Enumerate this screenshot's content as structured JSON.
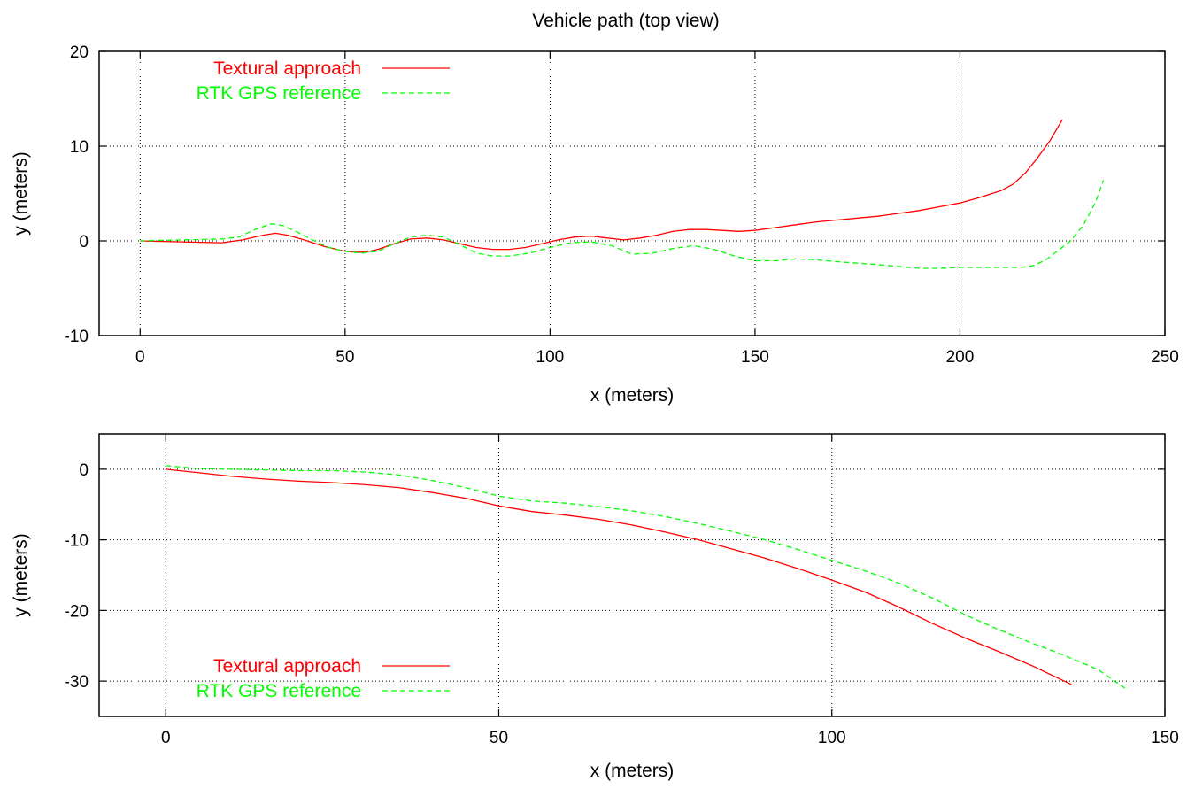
{
  "figure": {
    "title": "Vehicle path (top view)"
  },
  "chart_data": [
    {
      "type": "line",
      "title": "Vehicle path (top view)",
      "xlabel": "x (meters)",
      "ylabel": "y (meters)",
      "xlim": [
        -10,
        250
      ],
      "ylim": [
        -10,
        20
      ],
      "xticks": [
        0,
        50,
        100,
        150,
        200,
        250
      ],
      "yticks": [
        -10,
        0,
        10,
        20
      ],
      "xtick_labels": [
        "0",
        "50",
        "100",
        "150",
        "200",
        "250"
      ],
      "ytick_labels": [
        "-10",
        "0",
        "10",
        "20"
      ],
      "grid": true,
      "legend": "top-left",
      "series": [
        {
          "name": "Textural approach",
          "color": "#ff0000",
          "dash": "solid",
          "x": [
            0,
            10,
            20,
            25,
            30,
            33,
            36,
            40,
            45,
            50,
            53,
            55,
            58,
            62,
            66,
            70,
            74,
            78,
            82,
            86,
            90,
            94,
            98,
            102,
            106,
            110,
            114,
            118,
            122,
            126,
            130,
            134,
            138,
            142,
            146,
            150,
            155,
            160,
            165,
            170,
            175,
            180,
            185,
            190,
            195,
            200,
            205,
            210,
            213,
            216,
            219,
            222,
            225
          ],
          "y": [
            0,
            -0.1,
            -0.2,
            0.1,
            0.6,
            0.8,
            0.6,
            0.1,
            -0.6,
            -1.1,
            -1.2,
            -1.2,
            -0.9,
            -0.3,
            0.2,
            0.3,
            0.1,
            -0.3,
            -0.7,
            -0.9,
            -0.9,
            -0.7,
            -0.3,
            0.1,
            0.4,
            0.5,
            0.3,
            0.1,
            0.3,
            0.6,
            1.0,
            1.2,
            1.2,
            1.1,
            1.0,
            1.1,
            1.4,
            1.7,
            2.0,
            2.2,
            2.4,
            2.6,
            2.9,
            3.2,
            3.6,
            4.0,
            4.6,
            5.3,
            6.0,
            7.2,
            8.8,
            10.6,
            12.8
          ]
        },
        {
          "name": "RTK GPS reference",
          "color": "#00ff00",
          "dash": "dashed",
          "x": [
            0,
            10,
            20,
            24,
            28,
            32,
            35,
            38,
            42,
            46,
            50,
            54,
            58,
            62,
            66,
            70,
            74,
            78,
            82,
            86,
            90,
            95,
            100,
            105,
            110,
            115,
            120,
            125,
            130,
            135,
            140,
            145,
            150,
            155,
            160,
            165,
            170,
            180,
            190,
            195,
            200,
            210,
            215,
            218,
            221,
            224,
            227,
            230,
            233,
            235
          ],
          "y": [
            0,
            0.1,
            0.2,
            0.4,
            1.2,
            1.8,
            1.6,
            1.0,
            0.1,
            -0.7,
            -1.1,
            -1.3,
            -1.1,
            -0.3,
            0.4,
            0.6,
            0.4,
            -0.4,
            -1.3,
            -1.6,
            -1.6,
            -1.3,
            -0.7,
            -0.2,
            -0.1,
            -0.5,
            -1.4,
            -1.3,
            -0.8,
            -0.5,
            -0.9,
            -1.6,
            -2.1,
            -2.1,
            -1.9,
            -2.0,
            -2.2,
            -2.5,
            -2.9,
            -2.9,
            -2.8,
            -2.8,
            -2.8,
            -2.6,
            -2.0,
            -1.0,
            0.0,
            1.6,
            4.0,
            6.4
          ]
        }
      ]
    },
    {
      "type": "line",
      "title": "",
      "xlabel": "x (meters)",
      "ylabel": "y (meters)",
      "xlim": [
        -10,
        150
      ],
      "ylim": [
        -35,
        5
      ],
      "xticks": [
        0,
        50,
        100,
        150
      ],
      "yticks": [
        -30,
        -20,
        -10,
        0
      ],
      "xtick_labels": [
        "0",
        "50",
        "100",
        "150"
      ],
      "ytick_labels": [
        "-30",
        "-20",
        "-10",
        "0"
      ],
      "grid": true,
      "legend": "bottom-left",
      "series": [
        {
          "name": "Textural approach",
          "color": "#ff0000",
          "dash": "solid",
          "x": [
            0,
            5,
            10,
            15,
            20,
            25,
            30,
            35,
            40,
            45,
            50,
            55,
            60,
            65,
            70,
            75,
            80,
            85,
            90,
            95,
            100,
            105,
            110,
            115,
            120,
            125,
            130,
            136
          ],
          "y": [
            0,
            -0.5,
            -1.0,
            -1.4,
            -1.7,
            -1.9,
            -2.2,
            -2.6,
            -3.3,
            -4.1,
            -5.2,
            -6.0,
            -6.5,
            -7.1,
            -7.9,
            -8.9,
            -10.0,
            -11.3,
            -12.6,
            -14.1,
            -15.7,
            -17.4,
            -19.5,
            -21.8,
            -23.9,
            -25.8,
            -27.8,
            -30.5
          ]
        },
        {
          "name": "RTK GPS reference",
          "color": "#00ff00",
          "dash": "dashed",
          "x": [
            0,
            5,
            10,
            15,
            20,
            25,
            30,
            35,
            40,
            45,
            50,
            55,
            60,
            65,
            70,
            75,
            80,
            85,
            90,
            95,
            100,
            105,
            110,
            115,
            120,
            125,
            130,
            135,
            140,
            144
          ],
          "y": [
            0.5,
            0.1,
            0,
            -0.1,
            -0.2,
            -0.2,
            -0.4,
            -0.8,
            -1.6,
            -2.6,
            -3.8,
            -4.5,
            -4.8,
            -5.3,
            -5.9,
            -6.7,
            -7.7,
            -8.8,
            -10.0,
            -11.4,
            -12.9,
            -14.4,
            -16.1,
            -18.2,
            -20.6,
            -22.7,
            -24.6,
            -26.4,
            -28.4,
            -31.0
          ]
        }
      ]
    }
  ]
}
